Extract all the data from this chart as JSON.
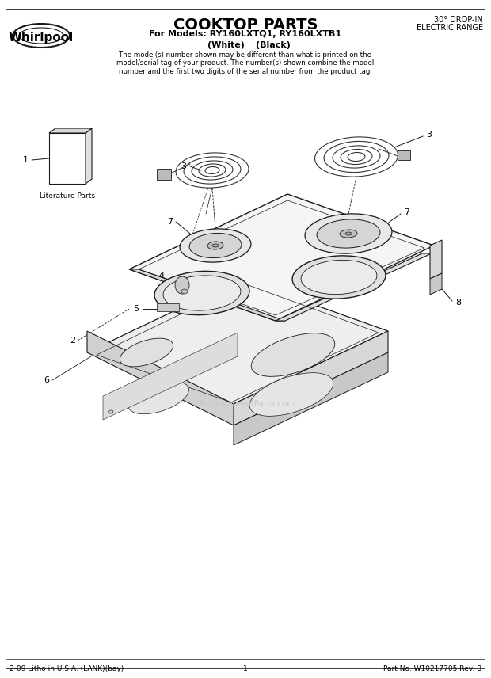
{
  "title": "COOKTOP PARTS",
  "subtitle_line1": "For Models: RY160LXTQ1, RY160LXTB1",
  "subtitle_line2_white": "(White)",
  "subtitle_line2_black": "(Black)",
  "top_right_line1": "30° DROP-IN",
  "top_right_line2": "ELECTRIC RANGE",
  "description": "The model(s) number shown may be different than what is printed on the\nmodel/serial tag of your product. The number(s) shown combine the model\nnumber and the first two digits of the serial number from the product tag.",
  "footer_left": "2-09 Litho in U.S.A. (LANK)(bay)",
  "footer_center": "1",
  "footer_right": "Part No. W10217705 Rev. B",
  "literature_label": "Literature Parts",
  "bg_color": "#ffffff",
  "lc": "#1a1a1a"
}
